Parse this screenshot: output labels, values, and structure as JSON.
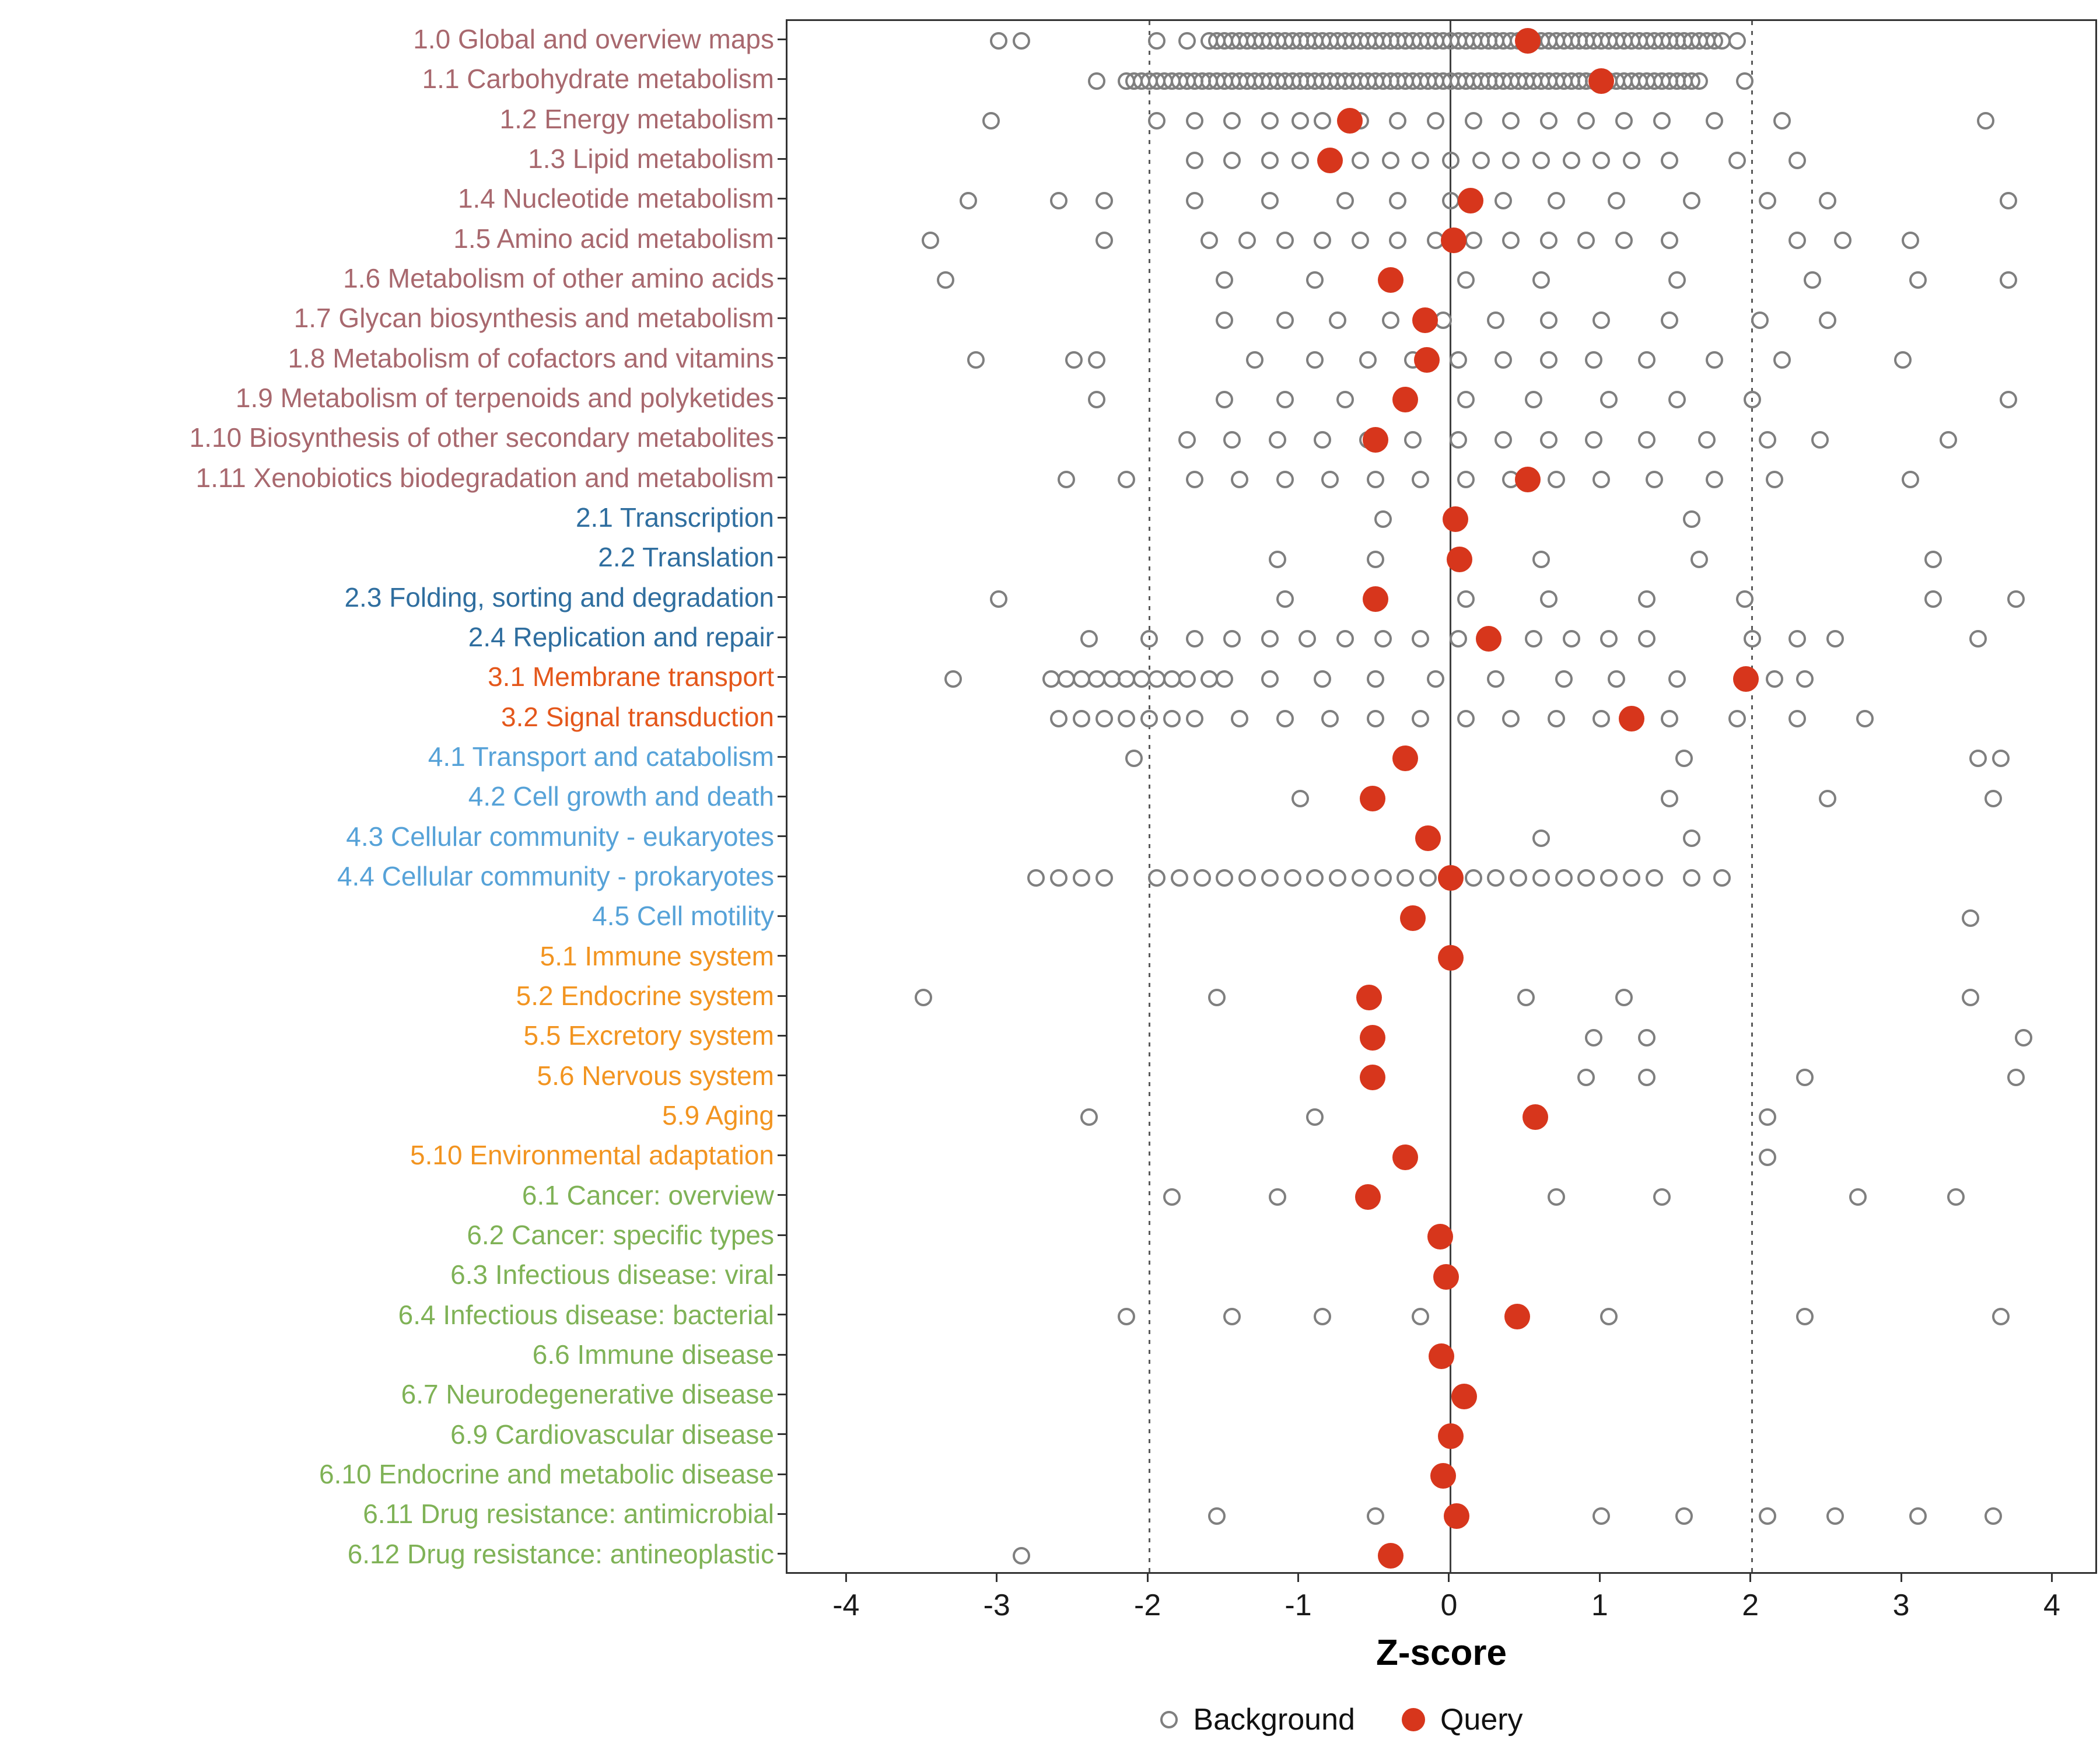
{
  "chart_data": {
    "type": "scatter",
    "title": "",
    "xlabel": "Z-score",
    "xlim": [
      -4.4,
      4.3
    ],
    "x_ticks": [
      -4,
      -3,
      -2,
      -1,
      0,
      1,
      2,
      3,
      4
    ],
    "reference_lines": {
      "solid": [
        0
      ],
      "dotted": [
        -2,
        2
      ]
    },
    "grid": "off",
    "legend": {
      "position": "bottom",
      "entries": [
        {
          "label": "Background",
          "type": "open"
        },
        {
          "label": "Query",
          "type": "filled"
        }
      ]
    },
    "group_colors": {
      "1": "#a8686e",
      "2": "#2f6e9f",
      "3": "#e4571b",
      "4": "#56a2d8",
      "5": "#f29420",
      "6": "#7fb256"
    },
    "point_colors": {
      "background_stroke": "#7f7f7f",
      "query_fill": "#d7361c"
    },
    "rows": [
      {
        "label": "1.0 Global and overview maps",
        "group": "1",
        "query": 0.51,
        "background": [
          -3.0,
          -2.85,
          -1.95,
          -1.75,
          -1.6,
          -1.55,
          -1.5,
          -1.45,
          -1.4,
          -1.35,
          -1.3,
          -1.25,
          -1.2,
          -1.15,
          -1.1,
          -1.05,
          -1.0,
          -0.95,
          -0.9,
          -0.85,
          -0.8,
          -0.75,
          -0.7,
          -0.65,
          -0.6,
          -0.55,
          -0.5,
          -0.45,
          -0.4,
          -0.35,
          -0.3,
          -0.25,
          -0.2,
          -0.15,
          -0.1,
          -0.05,
          0.0,
          0.05,
          0.1,
          0.15,
          0.2,
          0.25,
          0.3,
          0.35,
          0.4,
          0.45,
          0.5,
          0.55,
          0.6,
          0.65,
          0.7,
          0.75,
          0.8,
          0.85,
          0.9,
          0.95,
          1.0,
          1.05,
          1.1,
          1.15,
          1.2,
          1.25,
          1.3,
          1.35,
          1.4,
          1.45,
          1.5,
          1.55,
          1.6,
          1.65,
          1.7,
          1.75,
          1.8,
          1.9
        ]
      },
      {
        "label": "1.1 Carbohydrate metabolism",
        "group": "1",
        "query": 1.0,
        "background": [
          -2.35,
          -2.15,
          -2.1,
          -2.05,
          -2.0,
          -1.95,
          -1.9,
          -1.85,
          -1.8,
          -1.75,
          -1.7,
          -1.65,
          -1.6,
          -1.55,
          -1.5,
          -1.45,
          -1.4,
          -1.35,
          -1.3,
          -1.25,
          -1.2,
          -1.15,
          -1.1,
          -1.05,
          -1.0,
          -0.95,
          -0.9,
          -0.85,
          -0.8,
          -0.75,
          -0.7,
          -0.65,
          -0.6,
          -0.55,
          -0.5,
          -0.45,
          -0.4,
          -0.35,
          -0.3,
          -0.25,
          -0.2,
          -0.15,
          -0.1,
          -0.05,
          0.0,
          0.05,
          0.1,
          0.15,
          0.2,
          0.25,
          0.3,
          0.35,
          0.4,
          0.45,
          0.5,
          0.55,
          0.6,
          0.65,
          0.7,
          0.75,
          0.8,
          0.85,
          0.9,
          0.95,
          1.0,
          1.05,
          1.1,
          1.15,
          1.2,
          1.25,
          1.3,
          1.35,
          1.4,
          1.45,
          1.5,
          1.55,
          1.6,
          1.65,
          1.95
        ]
      },
      {
        "label": "1.2 Energy metabolism",
        "group": "1",
        "query": -0.67,
        "background": [
          -3.05,
          -1.95,
          -1.7,
          -1.45,
          -1.2,
          -1.0,
          -0.85,
          -0.6,
          -0.35,
          -0.1,
          0.15,
          0.4,
          0.65,
          0.9,
          1.15,
          1.4,
          1.75,
          2.2,
          3.55
        ]
      },
      {
        "label": "1.3 Lipid metabolism",
        "group": "1",
        "query": -0.8,
        "background": [
          -1.7,
          -1.45,
          -1.2,
          -1.0,
          -0.8,
          -0.6,
          -0.4,
          -0.2,
          0.0,
          0.2,
          0.4,
          0.6,
          0.8,
          1.0,
          1.2,
          1.45,
          1.9,
          2.3
        ]
      },
      {
        "label": "1.4 Nucleotide metabolism",
        "group": "1",
        "query": 0.13,
        "background": [
          -3.2,
          -2.6,
          -2.3,
          -1.7,
          -1.2,
          -0.7,
          -0.35,
          0.0,
          0.35,
          0.7,
          1.1,
          1.6,
          2.1,
          2.5,
          3.7
        ]
      },
      {
        "label": "1.5 Amino acid metabolism",
        "group": "1",
        "query": 0.02,
        "background": [
          -3.45,
          -2.3,
          -1.6,
          -1.35,
          -1.1,
          -0.85,
          -0.6,
          -0.35,
          -0.1,
          0.15,
          0.4,
          0.65,
          0.9,
          1.15,
          1.45,
          2.3,
          2.6,
          3.05
        ]
      },
      {
        "label": "1.6 Metabolism of other amino acids",
        "group": "1",
        "query": -0.4,
        "background": [
          -3.35,
          -1.5,
          -0.9,
          -0.4,
          0.1,
          0.6,
          1.5,
          2.4,
          3.1,
          3.7
        ]
      },
      {
        "label": "1.7 Glycan biosynthesis and metabolism",
        "group": "1",
        "query": -0.17,
        "background": [
          -1.5,
          -1.1,
          -0.75,
          -0.4,
          -0.05,
          0.3,
          0.65,
          1.0,
          1.45,
          2.05,
          2.5
        ]
      },
      {
        "label": "1.8 Metabolism of cofactors and vitamins",
        "group": "1",
        "query": -0.16,
        "background": [
          -3.15,
          -2.5,
          -2.35,
          -1.3,
          -0.9,
          -0.55,
          -0.25,
          0.05,
          0.35,
          0.65,
          0.95,
          1.3,
          1.75,
          2.2,
          3.0
        ]
      },
      {
        "label": "1.9 Metabolism of terpenoids and polyketides",
        "group": "1",
        "query": -0.3,
        "background": [
          -2.35,
          -1.5,
          -1.1,
          -0.7,
          -0.3,
          0.1,
          0.55,
          1.05,
          1.5,
          2.0,
          3.7
        ]
      },
      {
        "label": "1.10 Biosynthesis of other secondary metabolites",
        "group": "1",
        "query": -0.5,
        "background": [
          -1.75,
          -1.45,
          -1.15,
          -0.85,
          -0.55,
          -0.25,
          0.05,
          0.35,
          0.65,
          0.95,
          1.3,
          1.7,
          2.1,
          2.45,
          3.3
        ]
      },
      {
        "label": "1.11 Xenobiotics biodegradation and metabolism",
        "group": "1",
        "query": 0.51,
        "background": [
          -2.55,
          -2.15,
          -1.7,
          -1.4,
          -1.1,
          -0.8,
          -0.5,
          -0.2,
          0.1,
          0.4,
          0.7,
          1.0,
          1.35,
          1.75,
          2.15,
          3.05
        ]
      },
      {
        "label": "2.1 Transcription",
        "group": "2",
        "query": 0.03,
        "background": [
          -0.45,
          1.6
        ]
      },
      {
        "label": "2.2 Translation",
        "group": "2",
        "query": 0.06,
        "background": [
          -1.15,
          -0.5,
          0.6,
          1.65,
          3.2
        ]
      },
      {
        "label": "2.3 Folding, sorting and degradation",
        "group": "2",
        "query": -0.5,
        "background": [
          -3.0,
          -1.1,
          0.1,
          0.65,
          1.3,
          1.95,
          3.2,
          3.75
        ]
      },
      {
        "label": "2.4 Replication and repair",
        "group": "2",
        "query": 0.25,
        "background": [
          -2.4,
          -2.0,
          -1.7,
          -1.45,
          -1.2,
          -0.95,
          -0.7,
          -0.45,
          -0.2,
          0.05,
          0.55,
          0.8,
          1.05,
          1.3,
          2.0,
          2.3,
          2.55,
          3.5
        ]
      },
      {
        "label": "3.1 Membrane transport",
        "group": "3",
        "query": 1.96,
        "background": [
          -3.3,
          -2.65,
          -2.55,
          -2.45,
          -2.35,
          -2.25,
          -2.15,
          -2.05,
          -1.95,
          -1.85,
          -1.75,
          -1.6,
          -1.5,
          -1.2,
          -0.85,
          -0.5,
          -0.1,
          0.3,
          0.75,
          1.1,
          1.5,
          2.15,
          2.35
        ]
      },
      {
        "label": "3.2 Signal transduction",
        "group": "3",
        "query": 1.2,
        "background": [
          -2.6,
          -2.45,
          -2.3,
          -2.15,
          -2.0,
          -1.85,
          -1.7,
          -1.4,
          -1.1,
          -0.8,
          -0.5,
          -0.2,
          0.1,
          0.4,
          0.7,
          1.0,
          1.45,
          1.9,
          2.3,
          2.75
        ]
      },
      {
        "label": "4.1 Transport and catabolism",
        "group": "4",
        "query": -0.3,
        "background": [
          -2.1,
          1.55,
          3.5,
          3.65
        ]
      },
      {
        "label": "4.2 Cell growth and death",
        "group": "4",
        "query": -0.52,
        "background": [
          -1.0,
          1.45,
          2.5,
          3.6
        ]
      },
      {
        "label": "4.3 Cellular community - eukaryotes",
        "group": "4",
        "query": -0.15,
        "background": [
          0.6,
          1.6
        ]
      },
      {
        "label": "4.4 Cellular community - prokaryotes",
        "group": "4",
        "query": 0.0,
        "background": [
          -2.75,
          -2.6,
          -2.45,
          -2.3,
          -1.95,
          -1.8,
          -1.65,
          -1.5,
          -1.35,
          -1.2,
          -1.05,
          -0.9,
          -0.75,
          -0.6,
          -0.45,
          -0.3,
          -0.15,
          0.0,
          0.15,
          0.3,
          0.45,
          0.6,
          0.75,
          0.9,
          1.05,
          1.2,
          1.35,
          1.6,
          1.8
        ]
      },
      {
        "label": "4.5 Cell motility",
        "group": "4",
        "query": -0.25,
        "background": [
          3.45
        ]
      },
      {
        "label": "5.1 Immune system",
        "group": "5",
        "query": 0.0,
        "background": []
      },
      {
        "label": "5.2 Endocrine system",
        "group": "5",
        "query": -0.54,
        "background": [
          -3.5,
          -1.55,
          0.5,
          1.15,
          3.45
        ]
      },
      {
        "label": "5.5 Excretory system",
        "group": "5",
        "query": -0.52,
        "background": [
          0.95,
          1.3,
          3.8
        ]
      },
      {
        "label": "5.6 Nervous system",
        "group": "5",
        "query": -0.52,
        "background": [
          0.9,
          1.3,
          2.35,
          3.75
        ]
      },
      {
        "label": "5.9 Aging",
        "group": "5",
        "query": 0.56,
        "background": [
          -2.4,
          -0.9,
          2.1
        ]
      },
      {
        "label": "5.10 Environmental adaptation",
        "group": "5",
        "query": -0.3,
        "background": [
          2.1
        ]
      },
      {
        "label": "6.1 Cancer: overview",
        "group": "6",
        "query": -0.55,
        "background": [
          -1.85,
          -1.15,
          0.7,
          1.4,
          2.7,
          3.35
        ]
      },
      {
        "label": "6.2 Cancer: specific types",
        "group": "6",
        "query": -0.07,
        "background": []
      },
      {
        "label": "6.3 Infectious disease: viral",
        "group": "6",
        "query": -0.03,
        "background": []
      },
      {
        "label": "6.4 Infectious disease: bacterial",
        "group": "6",
        "query": 0.44,
        "background": [
          -2.15,
          -1.45,
          -0.85,
          -0.2,
          1.05,
          2.35,
          3.65
        ]
      },
      {
        "label": "6.6 Immune disease",
        "group": "6",
        "query": -0.06,
        "background": []
      },
      {
        "label": "6.7 Neurodegenerative disease",
        "group": "6",
        "query": 0.09,
        "background": []
      },
      {
        "label": "6.9 Cardiovascular disease",
        "group": "6",
        "query": 0.0,
        "background": []
      },
      {
        "label": "6.10 Endocrine and metabolic disease",
        "group": "6",
        "query": -0.05,
        "background": []
      },
      {
        "label": "6.11 Drug resistance: antimicrobial",
        "group": "6",
        "query": 0.04,
        "background": [
          -1.55,
          -0.5,
          1.0,
          1.55,
          2.1,
          2.55,
          3.1,
          3.6
        ]
      },
      {
        "label": "6.12 Drug resistance: antineoplastic",
        "group": "6",
        "query": -0.4,
        "background": [
          -2.85
        ]
      }
    ]
  }
}
